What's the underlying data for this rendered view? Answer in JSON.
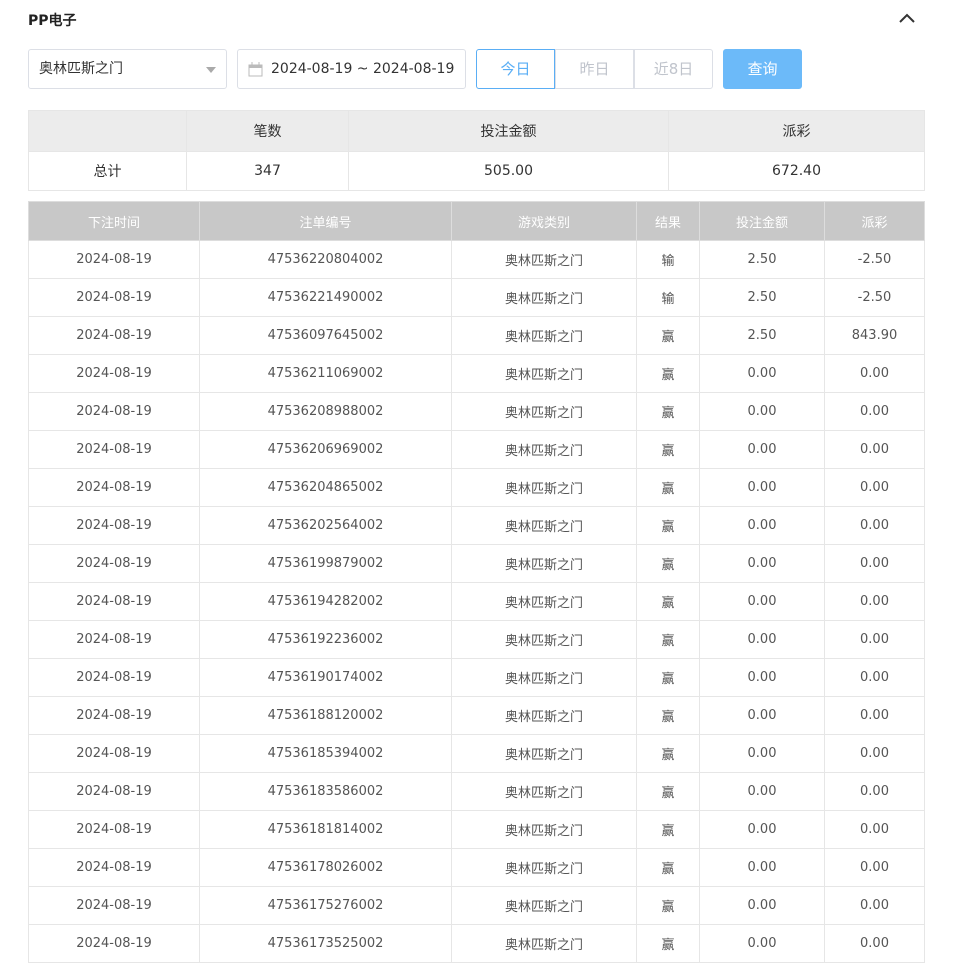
{
  "header": {
    "title": "PP电子"
  },
  "filters": {
    "game": "奥林匹斯之门",
    "date_range": "2024-08-19 ~ 2024-08-19",
    "quick": [
      "今日",
      "昨日",
      "近8日"
    ],
    "submit": "查询"
  },
  "summary": {
    "columns": [
      "笔数",
      "投注金额",
      "派彩"
    ],
    "row_label": "总计",
    "values": [
      "347",
      "505.00",
      "672.40"
    ]
  },
  "table": {
    "columns": [
      "下注时间",
      "注单编号",
      "游戏类别",
      "结果",
      "投注金额",
      "派彩"
    ],
    "rows": [
      [
        "2024-08-19",
        "47536220804002",
        "奥林匹斯之门",
        "输",
        "2.50",
        "-2.50"
      ],
      [
        "2024-08-19",
        "47536221490002",
        "奥林匹斯之门",
        "输",
        "2.50",
        "-2.50"
      ],
      [
        "2024-08-19",
        "47536097645002",
        "奥林匹斯之门",
        "赢",
        "2.50",
        "843.90"
      ],
      [
        "2024-08-19",
        "47536211069002",
        "奥林匹斯之门",
        "赢",
        "0.00",
        "0.00"
      ],
      [
        "2024-08-19",
        "47536208988002",
        "奥林匹斯之门",
        "赢",
        "0.00",
        "0.00"
      ],
      [
        "2024-08-19",
        "47536206969002",
        "奥林匹斯之门",
        "赢",
        "0.00",
        "0.00"
      ],
      [
        "2024-08-19",
        "47536204865002",
        "奥林匹斯之门",
        "赢",
        "0.00",
        "0.00"
      ],
      [
        "2024-08-19",
        "47536202564002",
        "奥林匹斯之门",
        "赢",
        "0.00",
        "0.00"
      ],
      [
        "2024-08-19",
        "47536199879002",
        "奥林匹斯之门",
        "赢",
        "0.00",
        "0.00"
      ],
      [
        "2024-08-19",
        "47536194282002",
        "奥林匹斯之门",
        "赢",
        "0.00",
        "0.00"
      ],
      [
        "2024-08-19",
        "47536192236002",
        "奥林匹斯之门",
        "赢",
        "0.00",
        "0.00"
      ],
      [
        "2024-08-19",
        "47536190174002",
        "奥林匹斯之门",
        "赢",
        "0.00",
        "0.00"
      ],
      [
        "2024-08-19",
        "47536188120002",
        "奥林匹斯之门",
        "赢",
        "0.00",
        "0.00"
      ],
      [
        "2024-08-19",
        "47536185394002",
        "奥林匹斯之门",
        "赢",
        "0.00",
        "0.00"
      ],
      [
        "2024-08-19",
        "47536183586002",
        "奥林匹斯之门",
        "赢",
        "0.00",
        "0.00"
      ],
      [
        "2024-08-19",
        "47536181814002",
        "奥林匹斯之门",
        "赢",
        "0.00",
        "0.00"
      ],
      [
        "2024-08-19",
        "47536178026002",
        "奥林匹斯之门",
        "赢",
        "0.00",
        "0.00"
      ],
      [
        "2024-08-19",
        "47536175276002",
        "奥林匹斯之门",
        "赢",
        "0.00",
        "0.00"
      ],
      [
        "2024-08-19",
        "47536173525002",
        "奥林匹斯之门",
        "赢",
        "0.00",
        "0.00"
      ]
    ]
  }
}
